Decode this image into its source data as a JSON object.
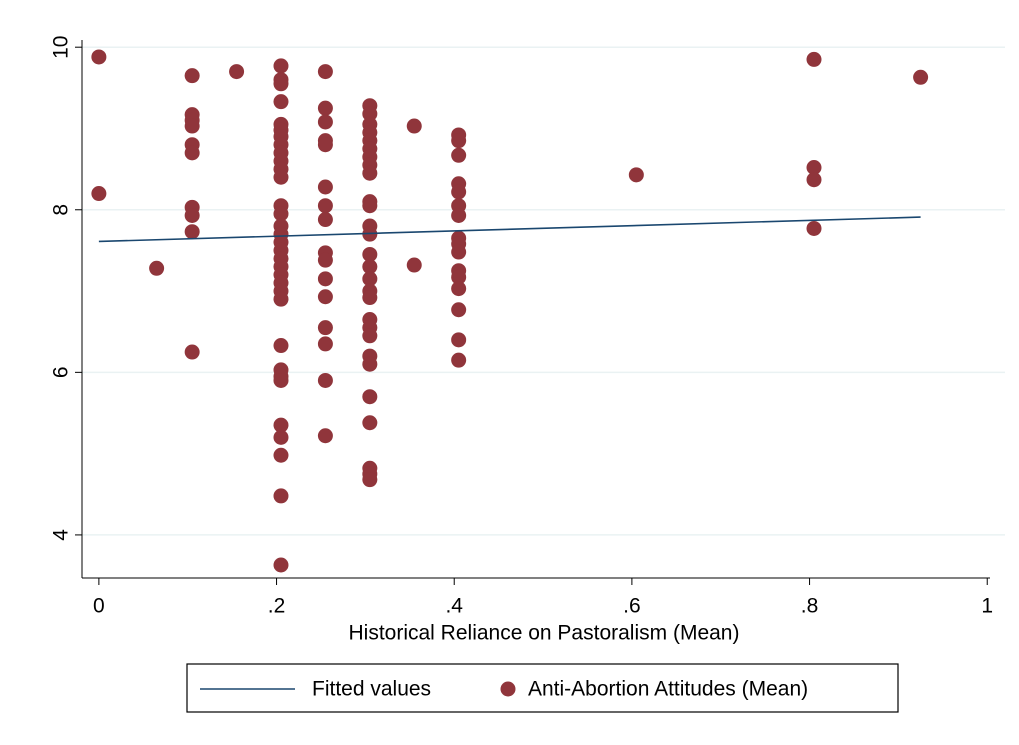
{
  "chart_data": {
    "type": "scatter",
    "x_label": "Historical Reliance on Pastoralism (Mean)",
    "xlim": [
      -0.019,
      1.02
    ],
    "ylim": [
      3.47,
      10.15
    ],
    "xticks": [
      0,
      {
        "value": 0.2,
        "label": ".2"
      },
      {
        "value": 0.4,
        "label": ".4"
      },
      {
        "value": 0.6,
        "label": ".6"
      },
      {
        "value": 0.8,
        "label": ".8"
      },
      1
    ],
    "yticks": [
      4,
      6,
      8,
      10
    ],
    "grid": true,
    "legend": "bottom",
    "series": [
      {
        "name": "Fitted values",
        "type": "line",
        "color": "#1a476f",
        "x": [
          0,
          0.925
        ],
        "values": [
          7.61,
          7.91
        ]
      },
      {
        "name": "Anti-Abortion Attitudes (Mean)",
        "type": "scatter",
        "color": "#90353b",
        "x": [
          0,
          0,
          0.065,
          0.105,
          0.105,
          0.105,
          0.105,
          0.105,
          0.105,
          0.105,
          0.105,
          0.105,
          0.105,
          0.155,
          0.205,
          0.205,
          0.205,
          0.205,
          0.205,
          0.205,
          0.205,
          0.205,
          0.205,
          0.205,
          0.205,
          0.205,
          0.205,
          0.205,
          0.205,
          0.205,
          0.205,
          0.205,
          0.205,
          0.205,
          0.205,
          0.205,
          0.205,
          0.205,
          0.205,
          0.205,
          0.205,
          0.205,
          0.205,
          0.205,
          0.205,
          0.205,
          0.205,
          0.255,
          0.255,
          0.255,
          0.255,
          0.255,
          0.255,
          0.255,
          0.255,
          0.255,
          0.255,
          0.255,
          0.255,
          0.255,
          0.255,
          0.255,
          0.255,
          0.305,
          0.305,
          0.305,
          0.305,
          0.305,
          0.305,
          0.305,
          0.305,
          0.305,
          0.305,
          0.305,
          0.305,
          0.305,
          0.305,
          0.305,
          0.305,
          0.305,
          0.305,
          0.305,
          0.305,
          0.305,
          0.305,
          0.305,
          0.305,
          0.305,
          0.305,
          0.305,
          0.305,
          0.355,
          0.355,
          0.405,
          0.405,
          0.405,
          0.405,
          0.405,
          0.405,
          0.405,
          0.405,
          0.405,
          0.405,
          0.405,
          0.405,
          0.405,
          0.405,
          0.405,
          0.405,
          0.605,
          0.805,
          0.805,
          0.805,
          0.805,
          0.925
        ],
        "values": [
          9.88,
          8.2,
          7.28,
          9.65,
          9.17,
          9.1,
          9.03,
          8.8,
          8.7,
          8.03,
          7.93,
          7.73,
          6.25,
          9.7,
          9.77,
          9.6,
          9.55,
          9.33,
          9.05,
          8.98,
          8.9,
          8.8,
          8.7,
          8.6,
          8.5,
          8.4,
          8.05,
          7.95,
          7.8,
          7.7,
          7.6,
          7.5,
          7.4,
          7.3,
          7.2,
          7.1,
          7.0,
          6.9,
          6.33,
          6.03,
          5.95,
          5.9,
          5.35,
          5.2,
          4.98,
          4.48,
          3.63,
          9.7,
          9.25,
          9.08,
          8.85,
          8.8,
          8.28,
          8.05,
          7.88,
          7.47,
          7.38,
          7.15,
          6.93,
          6.55,
          6.35,
          5.9,
          5.22,
          9.28,
          9.18,
          9.05,
          8.95,
          8.85,
          8.75,
          8.65,
          8.55,
          8.45,
          8.1,
          8.05,
          7.8,
          7.7,
          7.45,
          7.3,
          7.15,
          7.0,
          6.92,
          6.65,
          6.55,
          6.45,
          6.2,
          6.1,
          5.7,
          5.38,
          4.82,
          4.75,
          4.68,
          9.03,
          7.32,
          8.92,
          8.85,
          8.67,
          8.32,
          8.22,
          8.05,
          7.93,
          7.65,
          7.58,
          7.48,
          7.25,
          7.17,
          7.03,
          6.77,
          6.4,
          6.15,
          8.43,
          9.85,
          8.52,
          8.37,
          7.77,
          9.63
        ]
      }
    ]
  }
}
